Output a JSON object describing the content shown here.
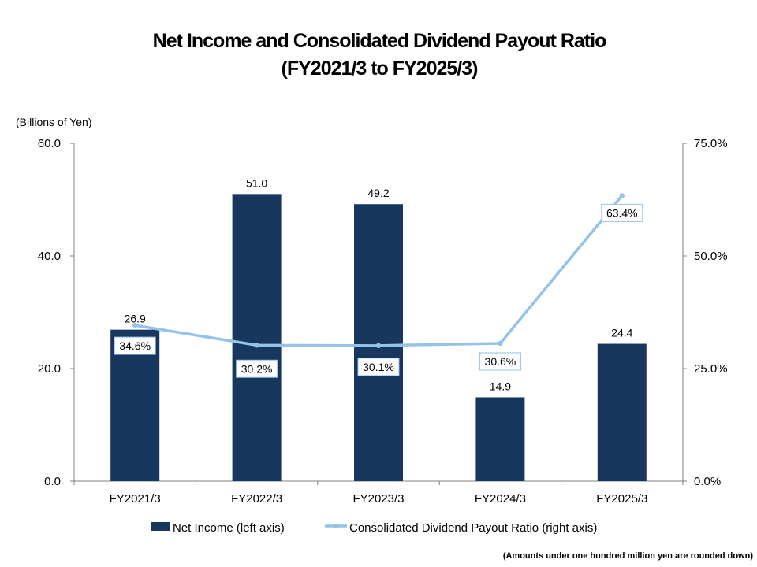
{
  "chart_data": {
    "type": "bar+line",
    "title_line1": "Net Income and Consolidated Dividend Payout Ratio",
    "title_line2": "(FY2021/3 to FY2025/3)",
    "left_axis_unit": "(Billions of Yen)",
    "categories": [
      "FY2021/3",
      "FY2022/3",
      "FY2023/3",
      "FY2024/3",
      "FY2025/3"
    ],
    "left_axis": {
      "min": 0,
      "max": 60,
      "ticks": [
        "0.0",
        "20.0",
        "40.0",
        "60.0"
      ]
    },
    "right_axis": {
      "min": 0,
      "max": 75,
      "ticks": [
        "0.0%",
        "25.0%",
        "50.0%",
        "75.0%"
      ]
    },
    "series": [
      {
        "name": "Net Income (left axis)",
        "kind": "bar",
        "axis": "left",
        "values": [
          26.9,
          51.0,
          49.2,
          14.9,
          24.4
        ],
        "labels": [
          "26.9",
          "51.0",
          "49.2",
          "14.9",
          "24.4"
        ],
        "color": "#17375e"
      },
      {
        "name": "Consolidated Dividend Payout Ratio (right axis)",
        "kind": "line",
        "axis": "right",
        "values": [
          34.6,
          30.2,
          30.1,
          30.6,
          63.4
        ],
        "labels": [
          "34.6%",
          "30.2%",
          "30.1%",
          "30.6%",
          "63.4%"
        ],
        "color": "#95c2e8"
      }
    ],
    "legend_position": "bottom",
    "footnote": "(Amounts under one hundred million yen are rounded down)"
  }
}
